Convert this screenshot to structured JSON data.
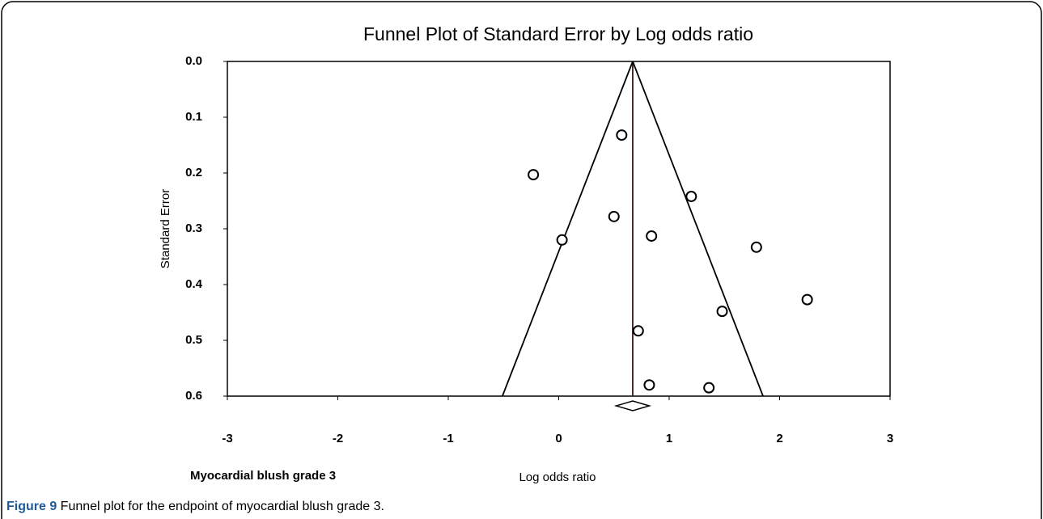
{
  "chart_data": {
    "type": "funnel",
    "title": "Funnel Plot of Standard Error by Log odds ratio",
    "x_label": "Log odds ratio",
    "y_label": "Standard Error",
    "annotation": "Myocardial blush grade 3",
    "x": [
      0.57,
      -0.23,
      1.2,
      0.5,
      0.03,
      0.84,
      1.79,
      2.25,
      1.48,
      0.72,
      0.82,
      1.36
    ],
    "values": [
      0.132,
      0.203,
      0.242,
      0.278,
      0.32,
      0.313,
      0.333,
      0.427,
      0.448,
      0.483,
      0.58,
      0.585
    ],
    "summary": 0.67,
    "summary_ci": [
      0.52,
      0.82
    ],
    "funnel_limits": [
      -0.51,
      1.85
    ],
    "xlim": [
      -3,
      3
    ],
    "xticks": [
      -3,
      -2,
      -1,
      0,
      1,
      2,
      3
    ],
    "ylim": [
      0,
      0.6
    ],
    "y_inverted": true,
    "yticks": [
      {
        "value": 0,
        "label": "0.0"
      },
      0.1,
      0.2,
      0.3,
      0.4,
      0.5,
      0.6
    ]
  },
  "caption": {
    "label": "Figure 9",
    "text": " Funnel plot for the endpoint of myocardial blush grade 3."
  }
}
